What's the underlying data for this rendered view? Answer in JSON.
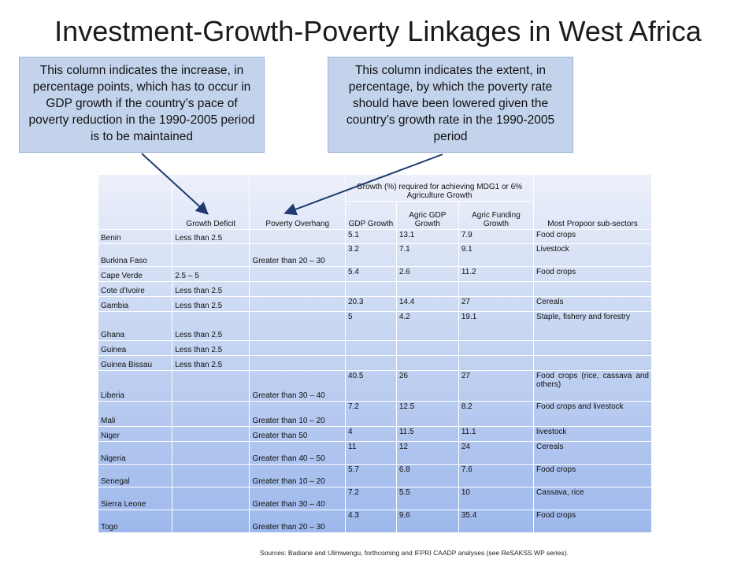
{
  "title": "Investment-Growth-Poverty Linkages in West Africa",
  "callouts": {
    "left": "This column indicates the increase, in percentage points, which has to occur in GDP growth if the country’s pace of poverty reduction in the 1990-2005 period is to be maintained",
    "right": "This column indicates the extent, in percentage, by which the poverty rate should have been lowered given the country’s growth rate in the 1990-2005 period"
  },
  "table": {
    "headers": {
      "country": "",
      "growth_deficit": "Growth Deficit",
      "poverty_overhang": "Poverty Overhang",
      "growth_required": "Growth (%) required for achieving MDG1 or 6% Agriculture Growth",
      "gdp_growth": "GDP Growth",
      "agric_gdp_growth": "Agric GDP Growth",
      "agric_funding_growth": "Agric Funding Growth",
      "subsectors": "Most Propoor sub-sectors"
    },
    "rows": [
      {
        "country": "Benin",
        "deficit": "Less than 2.5",
        "overhang": "",
        "gdp": "5.1",
        "agric_gdp": "13.1",
        "agric_funding": "7.9",
        "subsectors": "Food crops"
      },
      {
        "country": "Burkina Faso",
        "deficit": "",
        "overhang": "Greater than 20 – 30",
        "gdp": "3.2",
        "agric_gdp": "7.1",
        "agric_funding": "9.1",
        "subsectors": "Livestock"
      },
      {
        "country": "Cape Verde",
        "deficit": "2.5 – 5",
        "overhang": "",
        "gdp": "5.4",
        "agric_gdp": "2.6",
        "agric_funding": "11.2",
        "subsectors": "Food crops"
      },
      {
        "country": "Cote d'Ivoire",
        "deficit": "Less than 2.5",
        "overhang": "",
        "gdp": "",
        "agric_gdp": "",
        "agric_funding": "",
        "subsectors": ""
      },
      {
        "country": "Gambia",
        "deficit": "Less than 2.5",
        "overhang": "",
        "gdp": "20.3",
        "agric_gdp": "14.4",
        "agric_funding": "27",
        "subsectors": "Cereals"
      },
      {
        "country": "Ghana",
        "deficit": "Less than 2.5",
        "overhang": "",
        "gdp": "5",
        "agric_gdp": "4.2",
        "agric_funding": "19.1",
        "subsectors": "Staple, fishery and forestry"
      },
      {
        "country": "Guinea",
        "deficit": "Less than 2.5",
        "overhang": "",
        "gdp": "",
        "agric_gdp": "",
        "agric_funding": "",
        "subsectors": ""
      },
      {
        "country": "Guinea Bissau",
        "deficit": "Less than 2.5",
        "overhang": "",
        "gdp": "",
        "agric_gdp": "",
        "agric_funding": "",
        "subsectors": ""
      },
      {
        "country": "Liberia",
        "deficit": "",
        "overhang": "Greater than 30 – 40",
        "gdp": "40.5",
        "agric_gdp": "26",
        "agric_funding": "27",
        "subsectors": "Food crops (rice, cassava and others)"
      },
      {
        "country": "Mali",
        "deficit": "",
        "overhang": "Greater than 10 – 20",
        "gdp": "7.2",
        "agric_gdp": "12.5",
        "agric_funding": "8.2",
        "subsectors": "Food crops and livestock"
      },
      {
        "country": "Niger",
        "deficit": "",
        "overhang": "Greater than 50",
        "gdp": "4",
        "agric_gdp": "11.5",
        "agric_funding": "11.1",
        "subsectors": "livestock"
      },
      {
        "country": "Nigeria",
        "deficit": "",
        "overhang": "Greater than 40 – 50",
        "gdp": "11",
        "agric_gdp": "12",
        "agric_funding": "24",
        "subsectors": "Cereals"
      },
      {
        "country": "Senegal",
        "deficit": "",
        "overhang": "Greater than 10 – 20",
        "gdp": "5.7",
        "agric_gdp": "6.8",
        "agric_funding": "7.6",
        "subsectors": "Food crops"
      },
      {
        "country": "Sierra Leone",
        "deficit": "",
        "overhang": "Greater than 30 – 40",
        "gdp": "7.2",
        "agric_gdp": "5.5",
        "agric_funding": "10",
        "subsectors": "Cassava, rice"
      },
      {
        "country": "Togo",
        "deficit": "",
        "overhang": "Greater than 20 – 30",
        "gdp": "4.3",
        "agric_gdp": "9.6",
        "agric_funding": "35.4",
        "subsectors": "Food crops"
      }
    ]
  },
  "sources": "Sources: Badiane and Ulimwengu, forthcoming and IFPRI CAADP analyses (see ReSAKSS WP series).",
  "colors": {
    "callout_fill": "#c3d3ec",
    "arrow": "#1f3a6e",
    "table_top": "#ecf0fa",
    "table_bottom": "#9db8ec"
  }
}
